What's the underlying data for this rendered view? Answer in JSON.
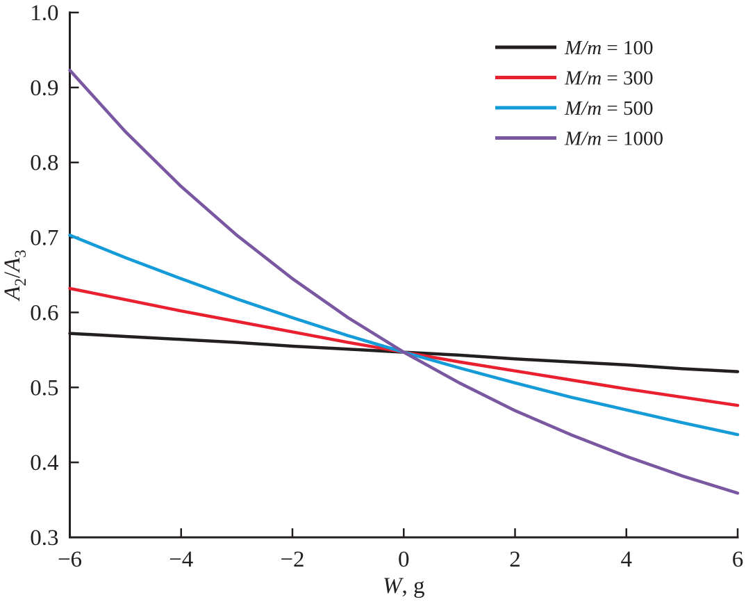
{
  "figure": {
    "background": "#ffffff",
    "axis_color": "#231f20"
  },
  "chart_data": {
    "type": "line",
    "title": "",
    "xlabel": "W, g",
    "xlabel_parts": [
      {
        "text": "W",
        "italic": true
      },
      {
        "text": ", g",
        "italic": false
      }
    ],
    "ylabel": "A2/A3",
    "ylabel_parts": [
      {
        "text": "A",
        "italic": true
      },
      {
        "text": "2",
        "sub": true
      },
      {
        "text": "/",
        "italic": false
      },
      {
        "text": "A",
        "italic": true
      },
      {
        "text": "3",
        "sub": true
      }
    ],
    "xlim": [
      -6,
      6
    ],
    "ylim": [
      0.3,
      1.0
    ],
    "x_ticks": [
      -6,
      -4,
      -2,
      0,
      2,
      4,
      6
    ],
    "y_ticks": [
      0.3,
      0.4,
      0.5,
      0.6,
      0.7,
      0.8,
      0.9,
      1.0
    ],
    "grid": false,
    "legend_position": "upper right",
    "x": [
      -6,
      -5,
      -4,
      -3,
      -2,
      -1,
      0,
      1,
      2,
      3,
      4,
      5,
      6
    ],
    "series": [
      {
        "name": "M/m = 100",
        "color": "#231f20",
        "values": [
          0.572,
          0.568,
          0.564,
          0.56,
          0.555,
          0.551,
          0.547,
          0.543,
          0.538,
          0.534,
          0.53,
          0.525,
          0.521
        ]
      },
      {
        "name": "M/m = 300",
        "color": "#e8202f",
        "values": [
          0.632,
          0.617,
          0.602,
          0.588,
          0.574,
          0.56,
          0.547,
          0.534,
          0.522,
          0.51,
          0.498,
          0.487,
          0.476
        ]
      },
      {
        "name": "M/m = 500",
        "color": "#149bd8",
        "values": [
          0.703,
          0.673,
          0.645,
          0.618,
          0.593,
          0.569,
          0.547,
          0.526,
          0.506,
          0.487,
          0.47,
          0.453,
          0.437
        ]
      },
      {
        "name": "M/m = 1000",
        "color": "#7a57a1",
        "values": [
          0.923,
          0.841,
          0.768,
          0.703,
          0.645,
          0.593,
          0.547,
          0.506,
          0.469,
          0.437,
          0.408,
          0.382,
          0.359
        ]
      }
    ]
  }
}
